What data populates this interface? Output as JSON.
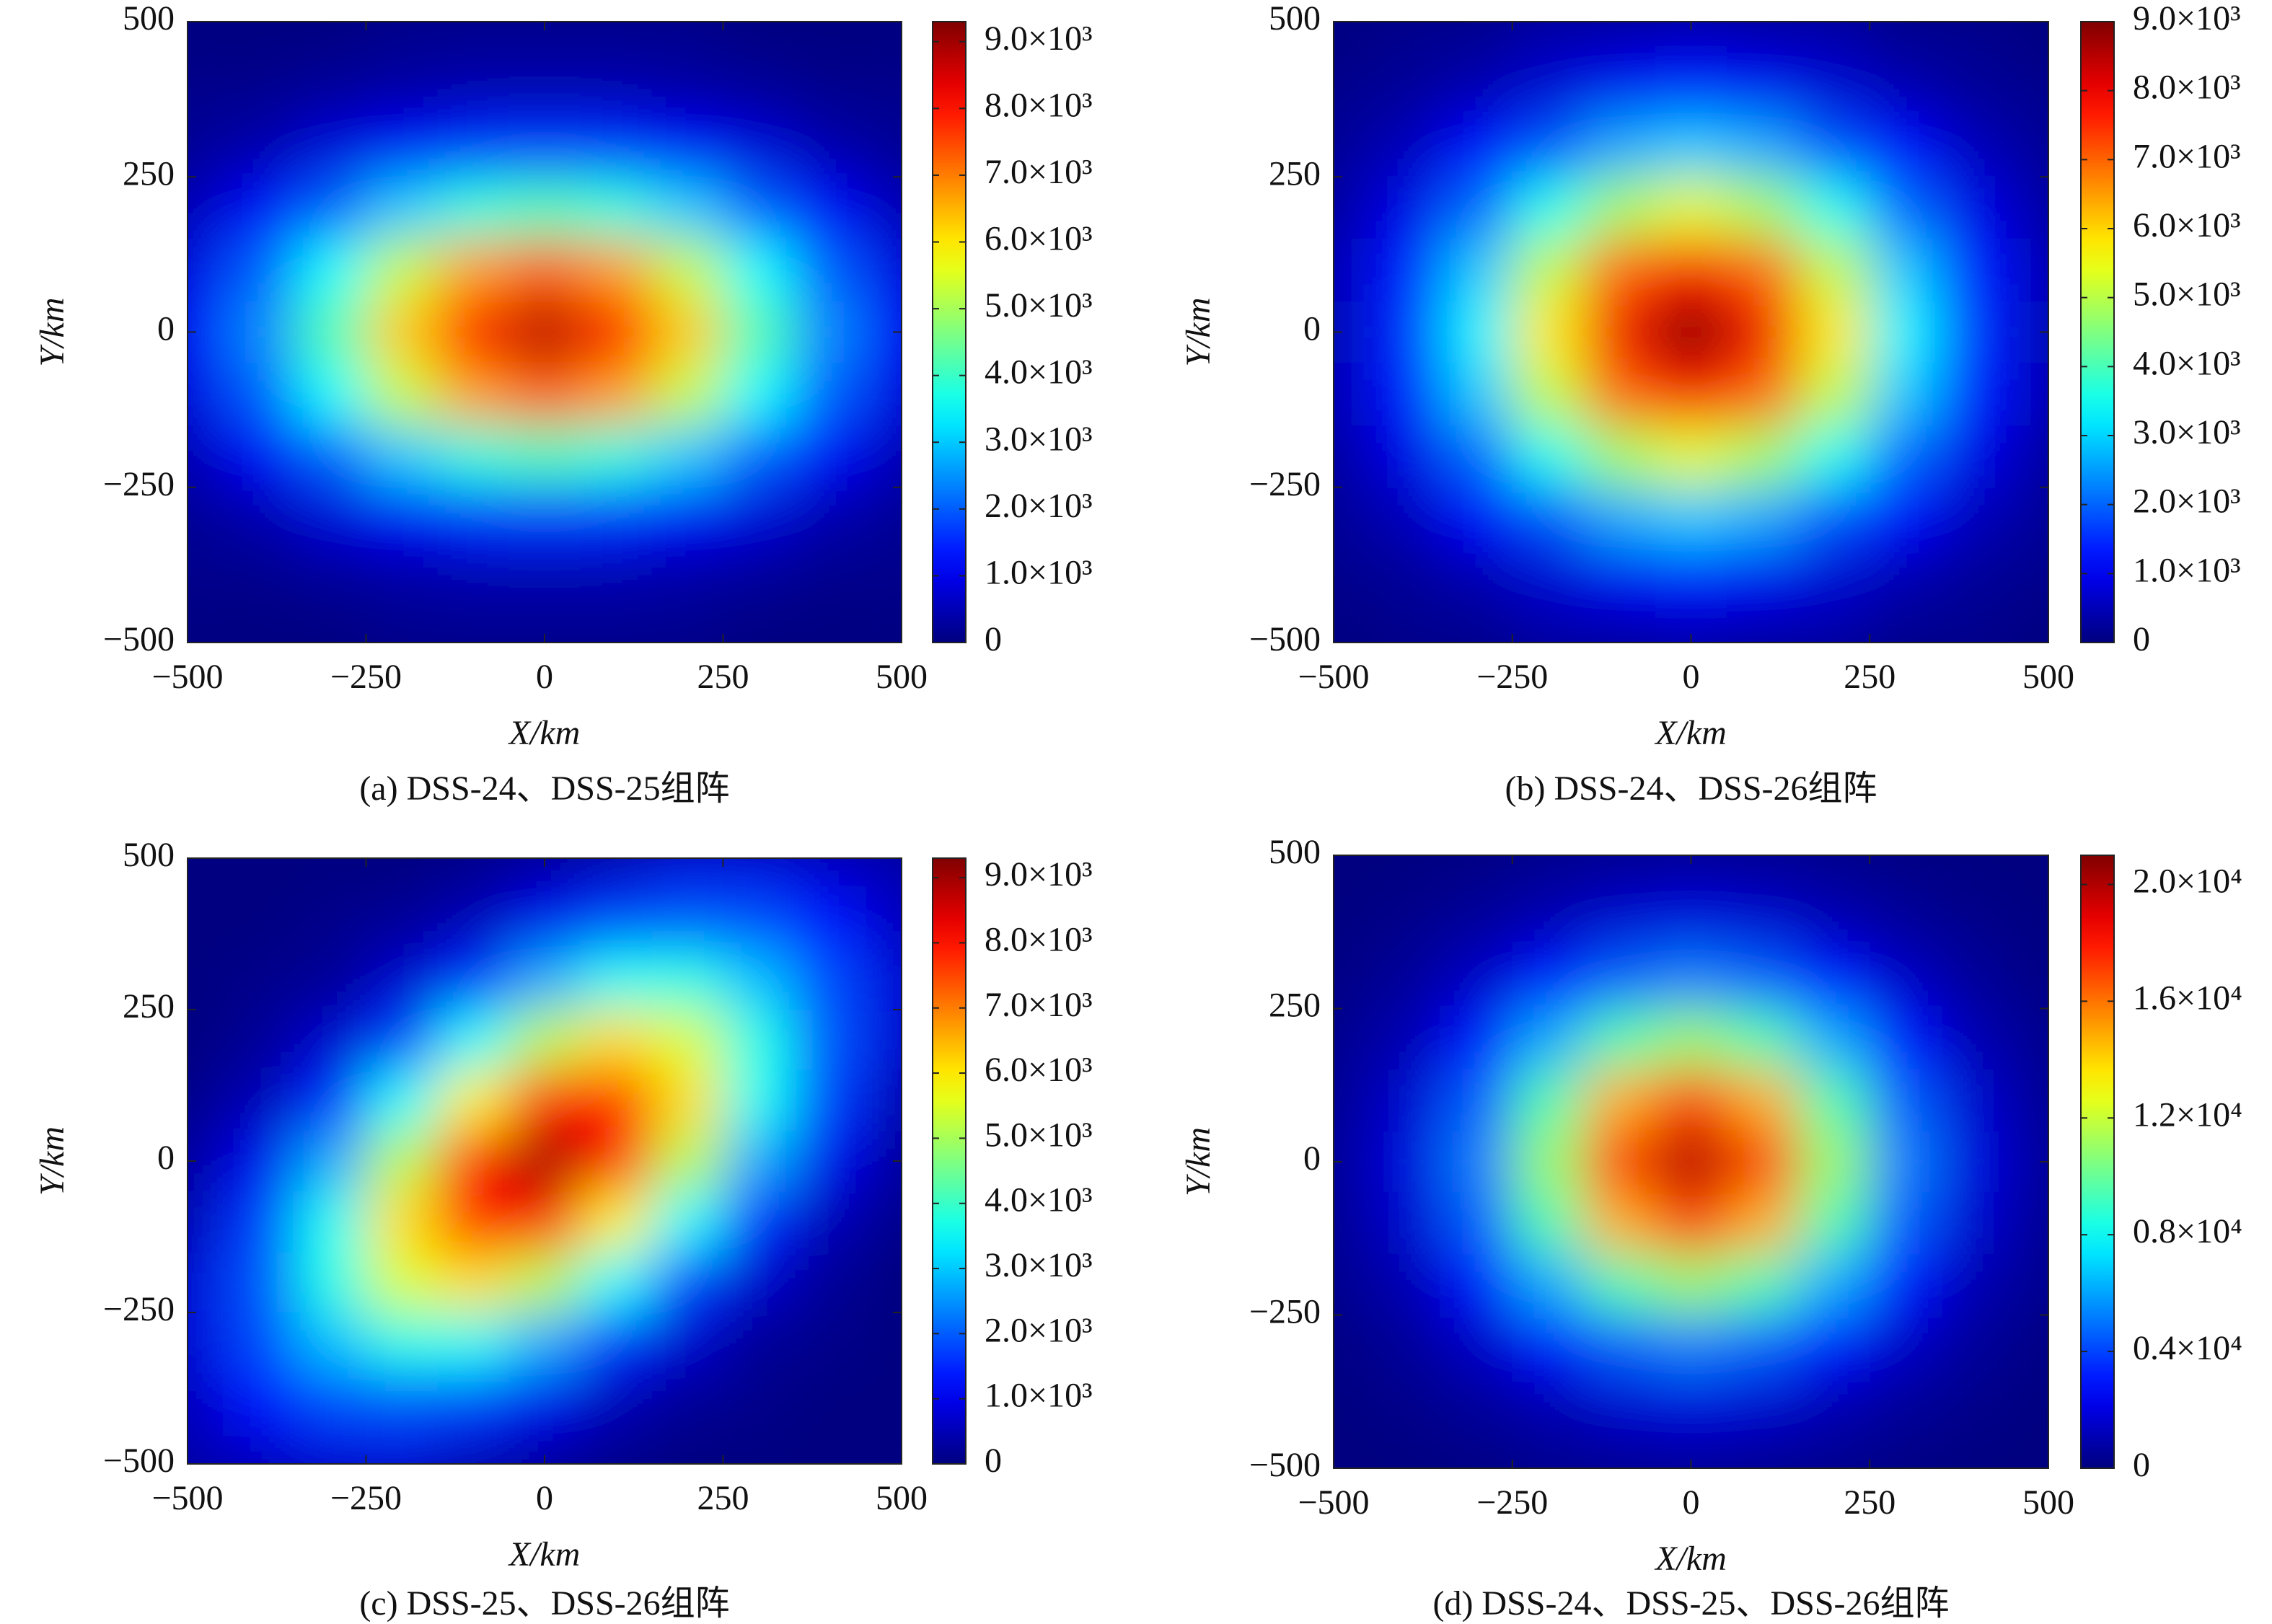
{
  "chart_data": [
    {
      "type": "heatmap",
      "caption": "(a) DSS-24、DSS-25组阵",
      "xlabel": "X/km",
      "ylabel": "Y/km",
      "colormap": "jet",
      "x": [
        -500,
        -400,
        -300,
        -200,
        -100,
        0,
        100,
        200,
        300,
        400,
        500
      ],
      "y": [
        500,
        400,
        300,
        200,
        100,
        0,
        -100,
        -200,
        -300,
        -400,
        -500
      ],
      "z": [
        [
          0,
          0,
          0,
          100,
          100,
          100,
          100,
          100,
          0,
          0,
          0
        ],
        [
          100,
          100,
          200,
          300,
          400,
          400,
          400,
          300,
          200,
          100,
          100
        ],
        [
          200,
          400,
          800,
          1100,
          1500,
          1600,
          1500,
          1100,
          800,
          400,
          200
        ],
        [
          500,
          1100,
          2000,
          3000,
          3800,
          4100,
          3800,
          3000,
          2000,
          1100,
          500
        ],
        [
          900,
          2000,
          3500,
          5300,
          6700,
          7300,
          6700,
          5300,
          3500,
          2000,
          900
        ],
        [
          1100,
          2400,
          4200,
          6300,
          8100,
          8800,
          8100,
          6300,
          4200,
          2400,
          1100
        ],
        [
          900,
          2000,
          3500,
          5300,
          6700,
          7300,
          6700,
          5300,
          3500,
          2000,
          900
        ],
        [
          500,
          1100,
          2000,
          3000,
          3800,
          4100,
          3800,
          3000,
          2000,
          1100,
          500
        ],
        [
          200,
          400,
          800,
          1100,
          1500,
          1600,
          1500,
          1100,
          800,
          400,
          200
        ],
        [
          100,
          100,
          200,
          300,
          400,
          400,
          400,
          300,
          200,
          100,
          100
        ],
        [
          0,
          0,
          0,
          100,
          100,
          100,
          100,
          100,
          0,
          0,
          0
        ]
      ],
      "xlim": [
        -500,
        500
      ],
      "ylim": [
        -500,
        500
      ],
      "xticks": [
        {
          "value": -500,
          "label": "−500"
        },
        {
          "value": -250,
          "label": "−250"
        },
        0,
        250,
        500
      ],
      "yticks": [
        {
          "value": -500,
          "label": "−500"
        },
        {
          "value": -250,
          "label": "−250"
        },
        0,
        250,
        500
      ],
      "clim": [
        0,
        9300
      ],
      "cticks": [
        0,
        {
          "value": 1000,
          "label": "1.0×10³"
        },
        {
          "value": 2000,
          "label": "2.0×10³"
        },
        {
          "value": 3000,
          "label": "3.0×10³"
        },
        {
          "value": 4000,
          "label": "4.0×10³"
        },
        {
          "value": 5000,
          "label": "5.0×10³"
        },
        {
          "value": 6000,
          "label": "6.0×10³"
        },
        {
          "value": 7000,
          "label": "7.0×10³"
        },
        {
          "value": 8000,
          "label": "8.0×10³"
        },
        {
          "value": 9000,
          "label": "9.0×10³"
        }
      ]
    },
    {
      "type": "heatmap",
      "caption": "(b) DSS-24、DSS-26组阵",
      "xlabel": "X/km",
      "ylabel": "Y/km",
      "colormap": "jet",
      "x": [
        -500,
        -400,
        -300,
        -200,
        -100,
        0,
        100,
        200,
        300,
        400,
        500
      ],
      "y": [
        500,
        400,
        300,
        200,
        100,
        0,
        -100,
        -200,
        -300,
        -400,
        -500
      ],
      "z": [
        [
          0,
          100,
          100,
          300,
          300,
          400,
          300,
          300,
          100,
          100,
          0
        ],
        [
          100,
          200,
          400,
          700,
          1000,
          1200,
          1000,
          700,
          400,
          200,
          100
        ],
        [
          200,
          500,
          1100,
          1800,
          2600,
          2900,
          2600,
          1800,
          1100,
          500,
          200
        ],
        [
          300,
          900,
          2000,
          3500,
          4800,
          5400,
          4800,
          3500,
          2000,
          900,
          300
        ],
        [
          500,
          1300,
          2900,
          5100,
          7000,
          7900,
          7000,
          5100,
          2900,
          1300,
          500
        ],
        [
          500,
          1500,
          3300,
          5800,
          8000,
          9000,
          8000,
          5800,
          3300,
          1500,
          500
        ],
        [
          500,
          1300,
          2900,
          5100,
          7000,
          7900,
          7000,
          5100,
          2900,
          1300,
          500
        ],
        [
          300,
          900,
          2000,
          3500,
          4800,
          5400,
          4800,
          3500,
          2000,
          900,
          300
        ],
        [
          200,
          500,
          1100,
          1800,
          2600,
          2900,
          2600,
          1800,
          1100,
          500,
          200
        ],
        [
          100,
          200,
          400,
          700,
          1000,
          1200,
          1000,
          700,
          400,
          200,
          100
        ],
        [
          0,
          100,
          100,
          300,
          300,
          400,
          300,
          300,
          100,
          100,
          0
        ]
      ],
      "xlim": [
        -500,
        500
      ],
      "ylim": [
        -500,
        500
      ],
      "xticks": [
        {
          "value": -500,
          "label": "−500"
        },
        {
          "value": -250,
          "label": "−250"
        },
        0,
        250,
        500
      ],
      "yticks": [
        {
          "value": -500,
          "label": "−500"
        },
        {
          "value": -250,
          "label": "−250"
        },
        0,
        250,
        500
      ],
      "clim": [
        0,
        9000
      ],
      "cticks": [
        0,
        {
          "value": 1000,
          "label": "1.0×10³"
        },
        {
          "value": 2000,
          "label": "2.0×10³"
        },
        {
          "value": 3000,
          "label": "3.0×10³"
        },
        {
          "value": 4000,
          "label": "4.0×10³"
        },
        {
          "value": 5000,
          "label": "5.0×10³"
        },
        {
          "value": 6000,
          "label": "6.0×10³"
        },
        {
          "value": 7000,
          "label": "7.0×10³"
        },
        {
          "value": 8000,
          "label": "8.0×10³"
        },
        {
          "value": 9000,
          "label": "9.0×10³"
        }
      ]
    },
    {
      "type": "heatmap",
      "caption": "(c) DSS-25、DSS-26组阵",
      "xlabel": "X/km",
      "ylabel": "Y/km",
      "colormap": "jet",
      "x": [
        -500,
        -400,
        -300,
        -200,
        -100,
        0,
        100,
        200,
        300,
        400,
        500
      ],
      "y": [
        500,
        400,
        300,
        200,
        100,
        0,
        -100,
        -200,
        -300,
        -400,
        -500
      ],
      "z": [
        [
          0,
          0,
          0,
          0,
          100,
          300,
          500,
          800,
          800,
          600,
          400
        ],
        [
          0,
          0,
          100,
          200,
          500,
          1000,
          1700,
          1900,
          1800,
          1300,
          600
        ],
        [
          0,
          100,
          200,
          700,
          1500,
          2700,
          3600,
          3700,
          2900,
          1800,
          800
        ],
        [
          0,
          200,
          700,
          1700,
          3500,
          5200,
          6100,
          5500,
          3700,
          1900,
          800
        ],
        [
          100,
          500,
          1500,
          3500,
          5900,
          7900,
          7900,
          6100,
          3600,
          1700,
          500
        ],
        [
          300,
          1000,
          2700,
          5200,
          7900,
          9000,
          7900,
          5200,
          2700,
          1000,
          300
        ],
        [
          500,
          1700,
          3600,
          6100,
          7900,
          7900,
          5900,
          3500,
          1500,
          500,
          100
        ],
        [
          800,
          1900,
          3700,
          5500,
          6100,
          5200,
          3500,
          1700,
          700,
          200,
          0
        ],
        [
          800,
          1800,
          2900,
          3700,
          3600,
          2700,
          1500,
          700,
          200,
          100,
          0
        ],
        [
          600,
          1300,
          1800,
          1900,
          1700,
          1000,
          500,
          200,
          100,
          0,
          0
        ],
        [
          400,
          600,
          800,
          800,
          500,
          300,
          100,
          0,
          0,
          0,
          0
        ]
      ],
      "xlim": [
        -500,
        500
      ],
      "ylim": [
        -500,
        500
      ],
      "xticks": [
        {
          "value": -500,
          "label": "−500"
        },
        {
          "value": -250,
          "label": "−250"
        },
        0,
        250,
        500
      ],
      "yticks": [
        {
          "value": -500,
          "label": "−500"
        },
        {
          "value": -250,
          "label": "−250"
        },
        0,
        250,
        500
      ],
      "clim": [
        0,
        9300
      ],
      "cticks": [
        0,
        {
          "value": 1000,
          "label": "1.0×10³"
        },
        {
          "value": 2000,
          "label": "2.0×10³"
        },
        {
          "value": 3000,
          "label": "3.0×10³"
        },
        {
          "value": 4000,
          "label": "4.0×10³"
        },
        {
          "value": 5000,
          "label": "5.0×10³"
        },
        {
          "value": 6000,
          "label": "6.0×10³"
        },
        {
          "value": 7000,
          "label": "7.0×10³"
        },
        {
          "value": 8000,
          "label": "8.0×10³"
        },
        {
          "value": 9000,
          "label": "9.0×10³"
        }
      ]
    },
    {
      "type": "heatmap",
      "caption": "(d) DSS-24、DSS-25、DSS-26组阵",
      "xlabel": "X/km",
      "ylabel": "Y/km",
      "colormap": "jet",
      "x": [
        -500,
        -400,
        -300,
        -200,
        -100,
        0,
        100,
        200,
        300,
        400,
        500
      ],
      "y": [
        500,
        400,
        300,
        200,
        100,
        0,
        -100,
        -200,
        -300,
        -400,
        -500
      ],
      "z": [
        [
          0,
          0,
          100,
          300,
          400,
          500,
          400,
          300,
          100,
          0,
          0
        ],
        [
          0,
          200,
          500,
          1000,
          1600,
          1900,
          1600,
          1000,
          500,
          200,
          0
        ],
        [
          100,
          500,
          1400,
          2900,
          4500,
          5200,
          4500,
          2900,
          1400,
          500,
          100
        ],
        [
          300,
          1000,
          2900,
          6100,
          9500,
          11000,
          9500,
          6100,
          2900,
          1000,
          300
        ],
        [
          400,
          1600,
          4500,
          9500,
          14800,
          17200,
          14800,
          9500,
          4500,
          1600,
          400
        ],
        [
          500,
          1900,
          5200,
          11000,
          17200,
          20000,
          17200,
          11000,
          5200,
          1900,
          500
        ],
        [
          400,
          1600,
          4500,
          9500,
          14800,
          17200,
          14800,
          9500,
          4500,
          1600,
          400
        ],
        [
          300,
          1000,
          2900,
          6100,
          9500,
          11000,
          9500,
          6100,
          2900,
          1000,
          300
        ],
        [
          100,
          500,
          1400,
          2900,
          4500,
          5200,
          4500,
          2900,
          1400,
          500,
          100
        ],
        [
          0,
          200,
          500,
          1000,
          1600,
          1900,
          1600,
          1000,
          500,
          200,
          0
        ],
        [
          0,
          0,
          100,
          300,
          400,
          500,
          400,
          300,
          100,
          0,
          0
        ]
      ],
      "xlim": [
        -500,
        500
      ],
      "ylim": [
        -500,
        500
      ],
      "xticks": [
        {
          "value": -500,
          "label": "−500"
        },
        {
          "value": -250,
          "label": "−250"
        },
        0,
        250,
        500
      ],
      "yticks": [
        {
          "value": -500,
          "label": "−500"
        },
        {
          "value": -250,
          "label": "−250"
        },
        0,
        250,
        500
      ],
      "clim": [
        0,
        21000
      ],
      "cticks": [
        0,
        {
          "value": 4000,
          "label": "0.4×10⁴"
        },
        {
          "value": 8000,
          "label": "0.8×10⁴"
        },
        {
          "value": 12000,
          "label": "1.2×10⁴"
        },
        {
          "value": 16000,
          "label": "1.6×10⁴"
        },
        {
          "value": 20000,
          "label": "2.0×10⁴"
        }
      ]
    }
  ]
}
